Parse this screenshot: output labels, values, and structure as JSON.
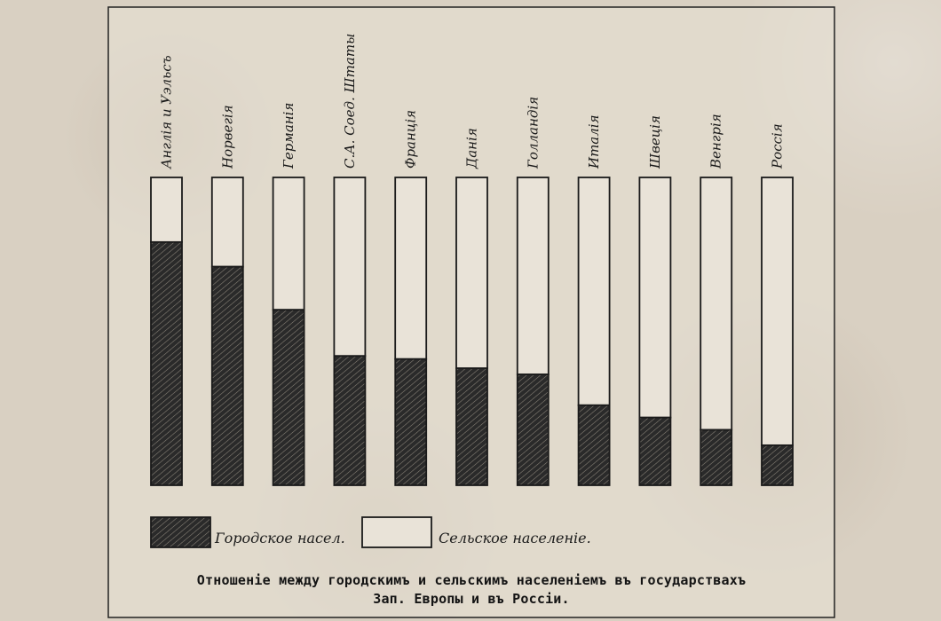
{
  "chart_data": {
    "type": "bar",
    "stacked": true,
    "unit": "percent",
    "ylim": [
      0,
      100
    ],
    "grid": false,
    "legend_position": "bottom",
    "categories": [
      "Англія и Уэльсъ",
      "Норвегія",
      "Германія",
      "С.А. Соед. Штаты",
      "Франція",
      "Данія",
      "Голландія",
      "Италія",
      "Швеція",
      "Венгрія",
      "Россія"
    ],
    "series": [
      {
        "name": "Городское насел.",
        "color": "#1c1c1c",
        "pattern": "diagonal-hatch",
        "values": [
          79,
          71,
          57,
          42,
          41,
          38,
          36,
          26,
          22,
          18,
          13
        ]
      },
      {
        "name": "Сельское населеніе.",
        "color": "#e9e3d8",
        "pattern": "none",
        "values": [
          21,
          29,
          43,
          58,
          59,
          62,
          64,
          74,
          78,
          82,
          87
        ]
      }
    ],
    "title": "Отношеніе между городскимъ и сельскимъ населеніемъ въ государствахъ Зап. Европы и въ Россіи."
  },
  "caption": {
    "line1": "Отношеніе между городскимъ и сельскимъ населеніемъ въ государствахъ",
    "line2": "Зап. Европы и въ Россіи."
  },
  "colors": {
    "paper": "#d9d0c2",
    "panel": "#e8e2d6",
    "ink": "#1a1a1a"
  }
}
